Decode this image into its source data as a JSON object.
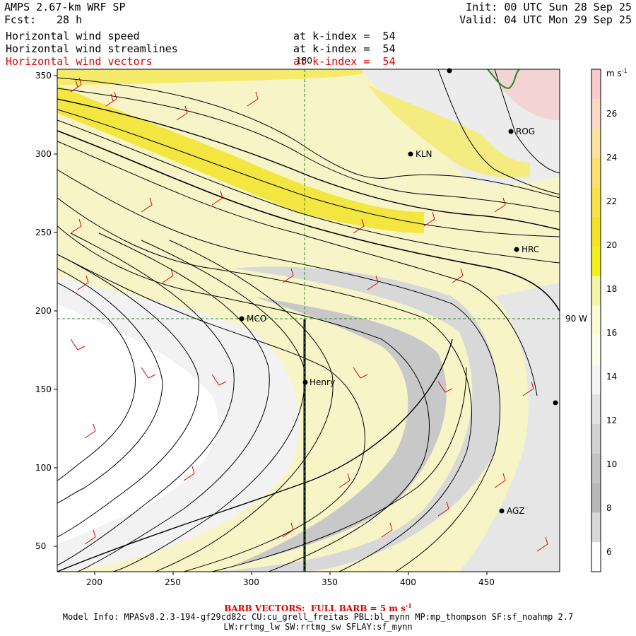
{
  "header": {
    "title": "AMPS 2.67-km WRF SP",
    "fcst_label": "Fcst:",
    "fcst_value": "28 h",
    "init": "Init: 00 UTC Sun 28 Sep 25",
    "valid": "Valid: 04 UTC Mon 29 Sep 25"
  },
  "fields": [
    {
      "name": "Horizontal wind speed",
      "level": "at k-index =  54",
      "color": "#000000"
    },
    {
      "name": "Horizontal wind streamlines",
      "level": "at k-index =  54",
      "color": "#000000"
    },
    {
      "name": "Horizontal wind vectors",
      "level": "at k-index =  54",
      "color": "#e00000"
    }
  ],
  "map": {
    "x_ticks": [
      "200",
      "250",
      "300",
      "350",
      "400",
      "450"
    ],
    "y_ticks": [
      "50",
      "100",
      "150",
      "200",
      "250",
      "300",
      "350"
    ],
    "lon_label": "180",
    "lat_label": "90 W",
    "stations": [
      {
        "name": "ROG"
      },
      {
        "name": "KLN"
      },
      {
        "name": "HRC"
      },
      {
        "name": "MCO"
      },
      {
        "name": "Henry"
      },
      {
        "name": "AGZ"
      }
    ]
  },
  "colorbar": {
    "unit": "m s",
    "unit_exp": "-1",
    "labels": [
      "26",
      "24",
      "22",
      "20",
      "18",
      "16",
      "14",
      "12",
      "10",
      "8",
      "6"
    ],
    "colors": [
      "#f8cccc",
      "#f9d8c8",
      "#fae2a0",
      "#f9e070",
      "#f7e24a",
      "#f3e326",
      "#f3f01e",
      "#f3f4a8",
      "#fafbd6",
      "#fcfde8",
      "#f4f4f4",
      "#e2e2e2",
      "#d2d2d2",
      "#c4c4c4",
      "#b8b8b8",
      "#d8d8d8",
      "#ffffff"
    ]
  },
  "footer": {
    "barb_label": "BARB VECTORS:  FULL BARB = 5 m s",
    "barb_exp": "-1",
    "model_line1": "Model Info: MPASv8.2.3-194-gf29cd82c CU:cu_grell_freitas PBL:bl_mynn MP:mp_thompson SF:sf_noahmp 2.7",
    "model_line2": "LW:rrtmg_lw SW:rrtmg_sw SFLAY:sf_mynn"
  }
}
